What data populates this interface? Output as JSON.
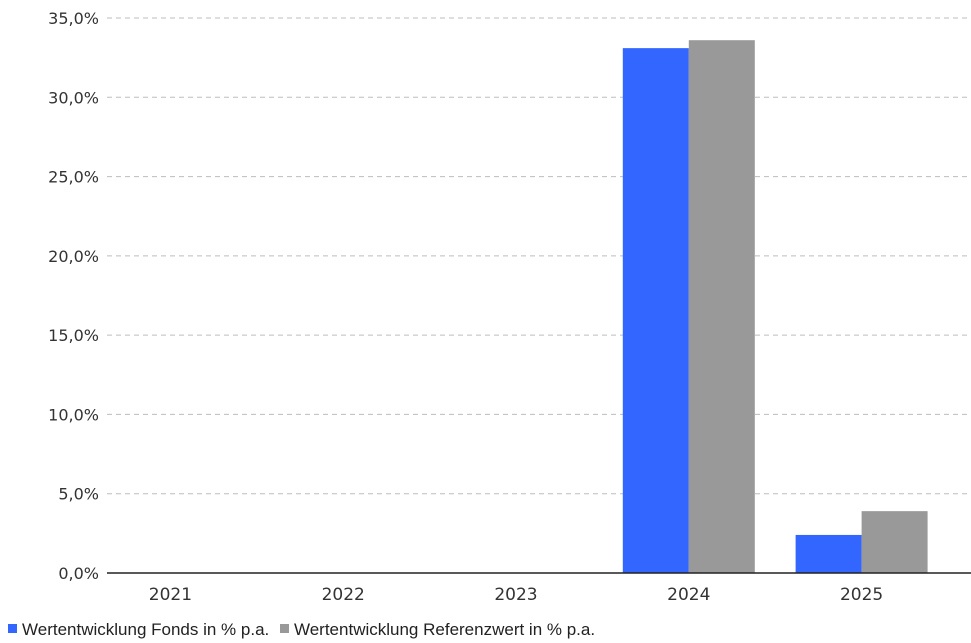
{
  "chart_data": {
    "type": "bar",
    "categories": [
      "2021",
      "2022",
      "2023",
      "2024",
      "2025"
    ],
    "series": [
      {
        "name": "Wertentwicklung Fonds in % p.a.",
        "color": "#3366ff",
        "values": [
          null,
          null,
          null,
          33.1,
          2.4
        ]
      },
      {
        "name": "Wertentwicklung Referenzwert in % p.a.",
        "color": "#999999",
        "values": [
          null,
          null,
          null,
          33.6,
          3.9
        ]
      }
    ],
    "y_ticks": [
      "0,0%",
      "5,0%",
      "10,0%",
      "15,0%",
      "20,0%",
      "25,0%",
      "30,0%",
      "35,0%"
    ],
    "ylim": [
      0,
      35
    ],
    "grid": true,
    "legend_position": "bottom-left"
  }
}
